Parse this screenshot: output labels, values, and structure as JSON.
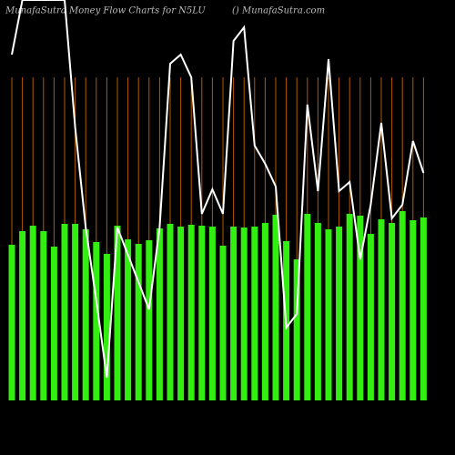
{
  "chart_data": {
    "type": "bar",
    "title": "MunafaSutra  Money Flow  Charts for N5LU",
    "subtitle": "() MunafaSutra.com",
    "ylim": [
      0,
      440
    ],
    "series": [
      {
        "type": "bar",
        "color": "#33ee11",
        "values": [
          171,
          186,
          192,
          186,
          169,
          194,
          194,
          188,
          174,
          161,
          192,
          177,
          172,
          176,
          189,
          194,
          191,
          193,
          192,
          191,
          170,
          191,
          190,
          191,
          195,
          204,
          175,
          155,
          205,
          195,
          188,
          191,
          205,
          203,
          183,
          199,
          195,
          208,
          198,
          201
        ]
      },
      {
        "type": "line",
        "color": "#ffffff",
        "values": [
          380,
          440,
          440,
          440,
          440,
          440,
          300,
          190,
          110,
          25,
          190,
          160,
          130,
          100,
          190,
          370,
          380,
          355,
          205,
          232,
          205,
          395,
          410,
          280,
          260,
          235,
          80,
          95,
          325,
          230,
          375,
          230,
          240,
          155,
          215,
          305,
          200,
          215,
          285,
          250
        ]
      }
    ],
    "guide_color": "#b25a00"
  }
}
